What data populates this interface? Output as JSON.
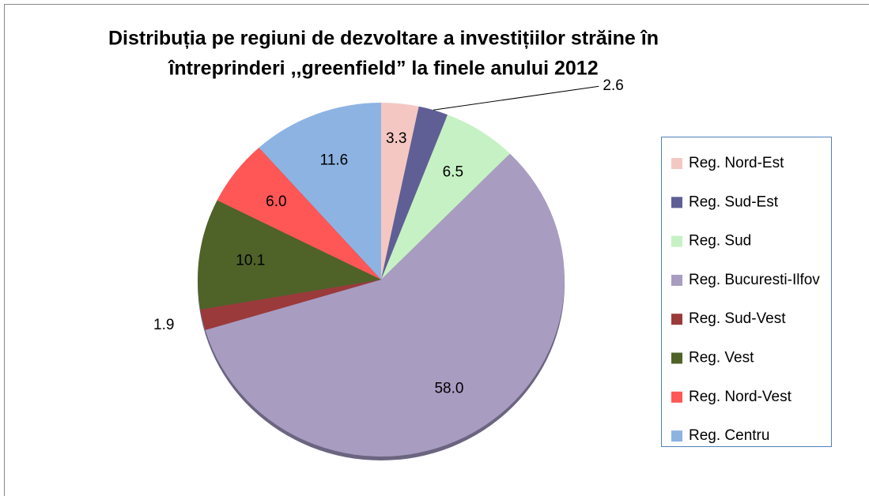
{
  "chart_data": {
    "type": "pie",
    "title": [
      "Distribuția pe regiuni de dezvoltare a investițiilor străine în",
      "întreprinderi ,,greenfield” la finele anului 2012"
    ],
    "categories": [
      "Reg. Nord-Est",
      "Reg. Sud-Est",
      "Reg. Sud",
      "Reg. Bucuresti-Ilfov",
      "Reg. Sud-Vest",
      "Reg. Vest",
      "Reg. Nord-Vest",
      "Reg. Centru"
    ],
    "values": [
      3.3,
      2.6,
      6.5,
      58.0,
      1.9,
      10.1,
      6.0,
      11.6
    ],
    "value_labels": [
      "3.3",
      "2.6",
      "6.5",
      "58.0",
      "1.9",
      "10.1",
      "6.0",
      "11.6"
    ],
    "colors": [
      "#f4c7c3",
      "#5f5f95",
      "#c6f1c4",
      "#a99cc1",
      "#9b3a3a",
      "#4f6228",
      "#ff5656",
      "#8db3e2"
    ],
    "legend": "right"
  }
}
